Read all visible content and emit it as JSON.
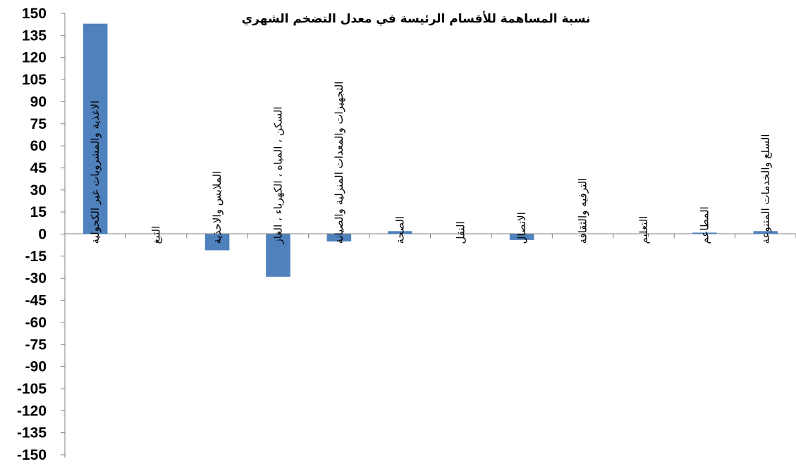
{
  "chart_data": {
    "type": "bar",
    "title": "نسبة المساهمة للأقسام الرئيسة في معدل التضخم الشهري",
    "xlabel": "",
    "ylabel": "",
    "ylim": [
      -150,
      150
    ],
    "yticks": [
      150,
      135,
      120,
      105,
      90,
      75,
      60,
      45,
      30,
      15,
      0,
      -15,
      -30,
      -45,
      -60,
      -75,
      -90,
      -105,
      -120,
      -135,
      -150
    ],
    "categories": [
      "الاغذية والمشروبات غير الكحولية",
      "التبغ",
      "الملابس والاحذية",
      "السكن ، المياه ، الكهرباء ، الغاز",
      "التجهيزات والمعدات المنزلية والصيانة",
      "الصحة",
      "النقل",
      "الاتصال",
      "الترفيه والثقافة",
      "التعليم",
      "المطاعم",
      "السلع والخدمات المتنوعة"
    ],
    "values": [
      143,
      0,
      -11,
      -29,
      -5,
      2,
      0,
      -4,
      0,
      0,
      1,
      2
    ],
    "bar_color": "#4f81bd",
    "grid": false,
    "legend": "none"
  }
}
